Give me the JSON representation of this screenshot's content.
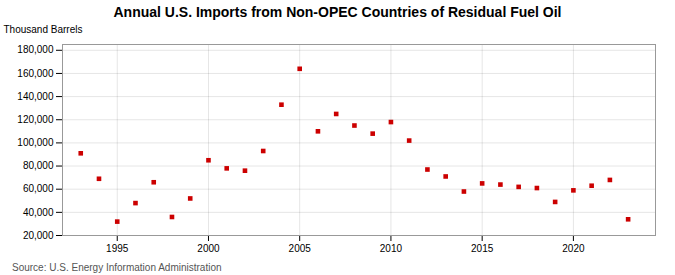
{
  "chart_data": {
    "type": "scatter",
    "title": "Annual U.S. Imports from Non-OPEC Countries of Residual Fuel Oil",
    "ylabel": "Thousand Barrels",
    "caption": "Source: U.S. Energy Information Administration",
    "x": [
      1993,
      1994,
      1995,
      1996,
      1997,
      1998,
      1999,
      2000,
      2001,
      2002,
      2003,
      2004,
      2005,
      2006,
      2007,
      2008,
      2009,
      2010,
      2011,
      2012,
      2013,
      2014,
      2015,
      2016,
      2017,
      2018,
      2019,
      2020,
      2021,
      2022,
      2023
    ],
    "values": [
      91000,
      69000,
      32000,
      48000,
      66000,
      36000,
      52000,
      85000,
      78000,
      76000,
      93000,
      133000,
      164000,
      110000,
      125000,
      115000,
      108000,
      118000,
      102000,
      77000,
      71000,
      58000,
      65000,
      64000,
      62000,
      61000,
      49000,
      59000,
      63000,
      68000,
      34000
    ],
    "color": "#cc0000",
    "marker": "square",
    "xlim": [
      1992.0,
      2024.5
    ],
    "xticks": [
      1995,
      2000,
      2005,
      2010,
      2015,
      2020
    ],
    "ylim": [
      20000,
      185000
    ],
    "yticks": [
      {
        "value": 20000,
        "label": "20,000"
      },
      {
        "value": 40000,
        "label": "40,000"
      },
      {
        "value": 60000,
        "label": "60,000"
      },
      {
        "value": 80000,
        "label": "80,000"
      },
      {
        "value": 100000,
        "label": "100,000"
      },
      {
        "value": 120000,
        "label": "120,000"
      },
      {
        "value": 140000,
        "label": "140,000"
      },
      {
        "value": 160000,
        "label": "160,000"
      },
      {
        "value": 180000,
        "label": "180,000"
      }
    ],
    "grid": true
  }
}
